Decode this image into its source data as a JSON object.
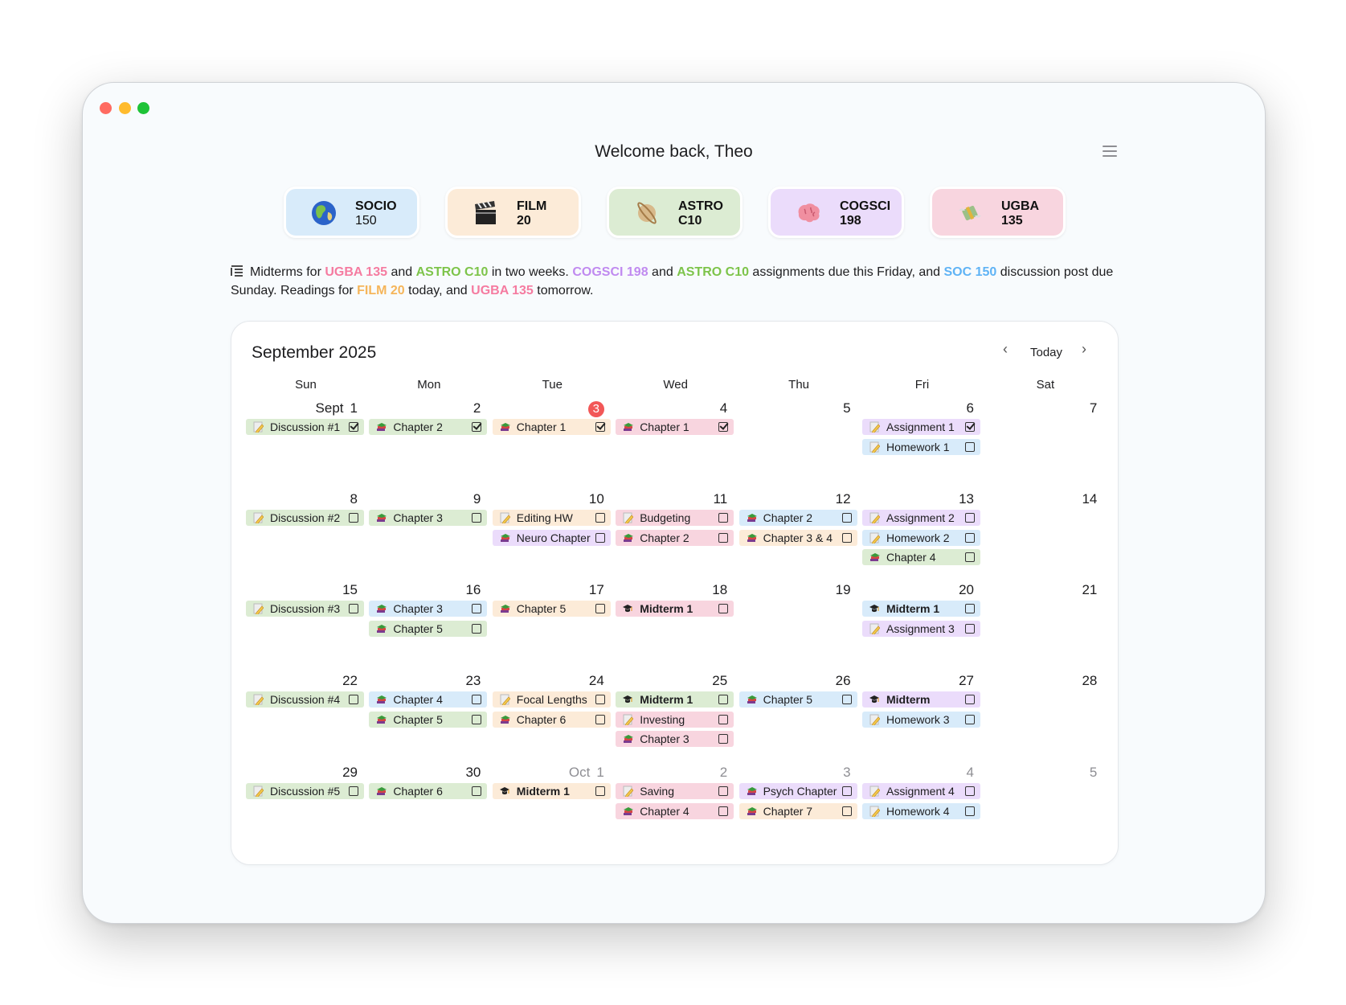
{
  "window": {
    "controls": [
      "close",
      "minimize",
      "maximize"
    ]
  },
  "header": {
    "title": "Welcome back, Theo",
    "menu_icon": "hamburger-menu-icon"
  },
  "palette": {
    "blue": {
      "bg": "#d8ebfa",
      "text": "#5fb3f5"
    },
    "peach": {
      "bg": "#fcebd8",
      "text": "#f5b55a"
    },
    "green": {
      "bg": "#dcecd3",
      "text": "#7dc44a"
    },
    "lilac": {
      "bg": "#ebdcfb",
      "text": "#c08af0"
    },
    "pink": {
      "bg": "#f8d5df",
      "text": "#f57ba0"
    }
  },
  "courses": [
    {
      "name": "SOCIO",
      "number": "150",
      "icon": "globe-icon",
      "color": "blue"
    },
    {
      "name": "FILM",
      "number": "20",
      "icon": "clapper-board-icon",
      "color": "peach"
    },
    {
      "name": "ASTRO",
      "number": "C10",
      "icon": "ringed-planet-icon",
      "color": "green"
    },
    {
      "name": "COGSCI",
      "number": "198",
      "icon": "brain-icon",
      "color": "lilac"
    },
    {
      "name": "UGBA",
      "number": "135",
      "icon": "money-with-wings-icon",
      "color": "pink"
    }
  ],
  "summary": {
    "icon": "list-icon",
    "segments": [
      {
        "text": "Midterms for "
      },
      {
        "text": "UGBA 135",
        "color": "pink"
      },
      {
        "text": " and "
      },
      {
        "text": "ASTRO C10",
        "color": "green"
      },
      {
        "text": " in two weeks. "
      },
      {
        "text": "COGSCI 198",
        "color": "lilac"
      },
      {
        "text": " and "
      },
      {
        "text": "ASTRO C10",
        "color": "green"
      },
      {
        "text": " assignments due this Friday, and "
      },
      {
        "text": "SOC 150",
        "color": "blue"
      },
      {
        "text": " discussion post due Sunday. Readings for "
      },
      {
        "text": "FILM 20",
        "color": "peach"
      },
      {
        "text": " today, and "
      },
      {
        "text": "UGBA 135",
        "color": "pink"
      },
      {
        "text": " tomorrow."
      }
    ]
  },
  "calendar": {
    "title": "September 2025",
    "prev_icon": "chevron-left-icon",
    "today_label": "Today",
    "next_icon": "chevron-right-icon",
    "weekdays": [
      "Sun",
      "Mon",
      "Tue",
      "Wed",
      "Thu",
      "Fri",
      "Sat"
    ],
    "weeks": [
      [
        {
          "day": "1",
          "month": "Sept",
          "events": [
            {
              "title": "Discussion #1",
              "icon": "memo",
              "color": "green",
              "done": true
            }
          ]
        },
        {
          "day": "2",
          "events": [
            {
              "title": "Chapter 2",
              "icon": "books",
              "color": "green",
              "done": true
            }
          ]
        },
        {
          "day": "3",
          "today": true,
          "events": [
            {
              "title": "Chapter 1",
              "icon": "books",
              "color": "peach",
              "done": true
            }
          ]
        },
        {
          "day": "4",
          "events": [
            {
              "title": "Chapter 1",
              "icon": "books",
              "color": "pink",
              "done": true
            }
          ]
        },
        {
          "day": "5",
          "events": []
        },
        {
          "day": "6",
          "events": [
            {
              "title": "Assignment 1",
              "icon": "memo",
              "color": "lilac",
              "done": true
            },
            {
              "title": "Homework 1",
              "icon": "memo",
              "color": "blue",
              "done": false
            }
          ]
        },
        {
          "day": "7",
          "events": []
        }
      ],
      [
        {
          "day": "8",
          "events": [
            {
              "title": "Discussion #2",
              "icon": "memo",
              "color": "green",
              "done": false
            }
          ]
        },
        {
          "day": "9",
          "events": [
            {
              "title": "Chapter 3",
              "icon": "books",
              "color": "green",
              "done": false
            }
          ]
        },
        {
          "day": "10",
          "events": [
            {
              "title": "Editing HW",
              "icon": "memo",
              "color": "peach",
              "done": false
            },
            {
              "title": "Neuro Chapter",
              "icon": "books",
              "color": "lilac",
              "done": false
            }
          ]
        },
        {
          "day": "11",
          "events": [
            {
              "title": "Budgeting",
              "icon": "memo",
              "color": "pink",
              "done": false
            },
            {
              "title": "Chapter 2",
              "icon": "books",
              "color": "pink",
              "done": false
            }
          ]
        },
        {
          "day": "12",
          "events": [
            {
              "title": "Chapter 2",
              "icon": "books",
              "color": "blue",
              "done": false
            },
            {
              "title": "Chapter 3 & 4",
              "icon": "books",
              "color": "peach",
              "done": false
            }
          ]
        },
        {
          "day": "13",
          "events": [
            {
              "title": "Assignment 2",
              "icon": "memo",
              "color": "lilac",
              "done": false
            },
            {
              "title": "Homework 2",
              "icon": "memo",
              "color": "blue",
              "done": false
            },
            {
              "title": "Chapter 4",
              "icon": "books",
              "color": "green",
              "done": false
            }
          ]
        },
        {
          "day": "14",
          "events": []
        }
      ],
      [
        {
          "day": "15",
          "events": [
            {
              "title": "Discussion #3",
              "icon": "memo",
              "color": "green",
              "done": false
            }
          ]
        },
        {
          "day": "16",
          "events": [
            {
              "title": "Chapter 3",
              "icon": "books",
              "color": "blue",
              "done": false
            },
            {
              "title": "Chapter 5",
              "icon": "books",
              "color": "green",
              "done": false
            }
          ]
        },
        {
          "day": "17",
          "events": [
            {
              "title": "Chapter 5",
              "icon": "books",
              "color": "peach",
              "done": false
            }
          ]
        },
        {
          "day": "18",
          "events": [
            {
              "title": "Midterm 1",
              "icon": "cap",
              "color": "pink",
              "done": false,
              "bold": true
            }
          ]
        },
        {
          "day": "19",
          "events": []
        },
        {
          "day": "20",
          "events": [
            {
              "title": "Midterm 1",
              "icon": "cap",
              "color": "blue",
              "done": false,
              "bold": true
            },
            {
              "title": "Assignment 3",
              "icon": "memo",
              "color": "lilac",
              "done": false
            }
          ]
        },
        {
          "day": "21",
          "events": []
        }
      ],
      [
        {
          "day": "22",
          "events": [
            {
              "title": "Discussion #4",
              "icon": "memo",
              "color": "green",
              "done": false
            }
          ]
        },
        {
          "day": "23",
          "events": [
            {
              "title": "Chapter 4",
              "icon": "books",
              "color": "blue",
              "done": false
            },
            {
              "title": "Chapter 5",
              "icon": "books",
              "color": "green",
              "done": false
            }
          ]
        },
        {
          "day": "24",
          "events": [
            {
              "title": "Focal Lengths",
              "icon": "memo",
              "color": "peach",
              "done": false
            },
            {
              "title": "Chapter 6",
              "icon": "books",
              "color": "peach",
              "done": false
            }
          ]
        },
        {
          "day": "25",
          "events": [
            {
              "title": "Midterm 1",
              "icon": "cap",
              "color": "green",
              "done": false,
              "bold": true
            },
            {
              "title": "Investing",
              "icon": "memo",
              "color": "pink",
              "done": false
            },
            {
              "title": "Chapter 3",
              "icon": "books",
              "color": "pink",
              "done": false
            }
          ]
        },
        {
          "day": "26",
          "events": [
            {
              "title": "Chapter 5",
              "icon": "books",
              "color": "blue",
              "done": false
            }
          ]
        },
        {
          "day": "27",
          "events": [
            {
              "title": "Midterm",
              "icon": "cap",
              "color": "lilac",
              "done": false,
              "bold": true
            },
            {
              "title": "Homework 3",
              "icon": "memo",
              "color": "blue",
              "done": false
            }
          ]
        },
        {
          "day": "28",
          "events": []
        }
      ],
      [
        {
          "day": "29",
          "events": [
            {
              "title": "Discussion #5",
              "icon": "memo",
              "color": "green",
              "done": false
            }
          ]
        },
        {
          "day": "30",
          "events": [
            {
              "title": "Chapter 6",
              "icon": "books",
              "color": "green",
              "done": false
            }
          ]
        },
        {
          "day": "1",
          "month": "Oct",
          "other": true,
          "events": [
            {
              "title": "Midterm 1",
              "icon": "cap",
              "color": "peach",
              "done": false,
              "bold": true
            }
          ]
        },
        {
          "day": "2",
          "other": true,
          "events": [
            {
              "title": "Saving",
              "icon": "memo",
              "color": "pink",
              "done": false
            },
            {
              "title": "Chapter 4",
              "icon": "books",
              "color": "pink",
              "done": false
            }
          ]
        },
        {
          "day": "3",
          "other": true,
          "events": [
            {
              "title": "Psych Chapter",
              "icon": "books",
              "color": "lilac",
              "done": false
            },
            {
              "title": "Chapter 7",
              "icon": "books",
              "color": "peach",
              "done": false
            }
          ]
        },
        {
          "day": "4",
          "other": true,
          "events": [
            {
              "title": "Assignment 4",
              "icon": "memo",
              "color": "lilac",
              "done": false
            },
            {
              "title": "Homework 4",
              "icon": "memo",
              "color": "blue",
              "done": false
            }
          ]
        },
        {
          "day": "5",
          "other": true,
          "events": []
        }
      ]
    ]
  }
}
